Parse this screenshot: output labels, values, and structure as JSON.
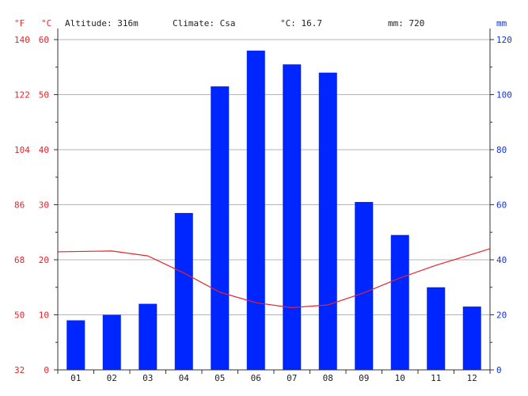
{
  "header": {
    "unit_f": "°F",
    "unit_c": "°C",
    "unit_mm": "mm",
    "altitude": "Altitude: 316m",
    "climate": "Climate: Csa",
    "mean_temp": "°C: 16.7",
    "annual_precip": "mm: 720"
  },
  "colors": {
    "precip_bar": "#0026ff",
    "temp_line": "#e8242b",
    "temp_axis": "#e8242b",
    "precip_axis": "#1433d6"
  },
  "chart_data": {
    "type": "bar",
    "categories": [
      "01",
      "02",
      "03",
      "04",
      "05",
      "06",
      "07",
      "08",
      "09",
      "10",
      "11",
      "12"
    ],
    "series": [
      {
        "axis": "precip_mm",
        "mark": "bar",
        "values": [
          18,
          20,
          24,
          57,
          103,
          116,
          111,
          108,
          61,
          49,
          30,
          23
        ]
      },
      {
        "axis": "temp_c",
        "mark": "line",
        "values": [
          21.5,
          21.6,
          20.7,
          17.6,
          14.1,
          12.2,
          11.3,
          11.8,
          14.0,
          16.7,
          19.0,
          21.0
        ]
      }
    ],
    "axes": {
      "left_c": {
        "ticks": [
          0,
          10,
          20,
          30,
          40,
          50,
          60
        ],
        "range": [
          0,
          60
        ]
      },
      "left_f": {
        "ticks": [
          32,
          50,
          68,
          86,
          104,
          122,
          140
        ],
        "range": [
          32,
          140
        ]
      },
      "right_mm": {
        "ticks": [
          0,
          20,
          40,
          60,
          80,
          100,
          120
        ],
        "range": [
          0,
          120
        ]
      }
    },
    "grid": true
  }
}
